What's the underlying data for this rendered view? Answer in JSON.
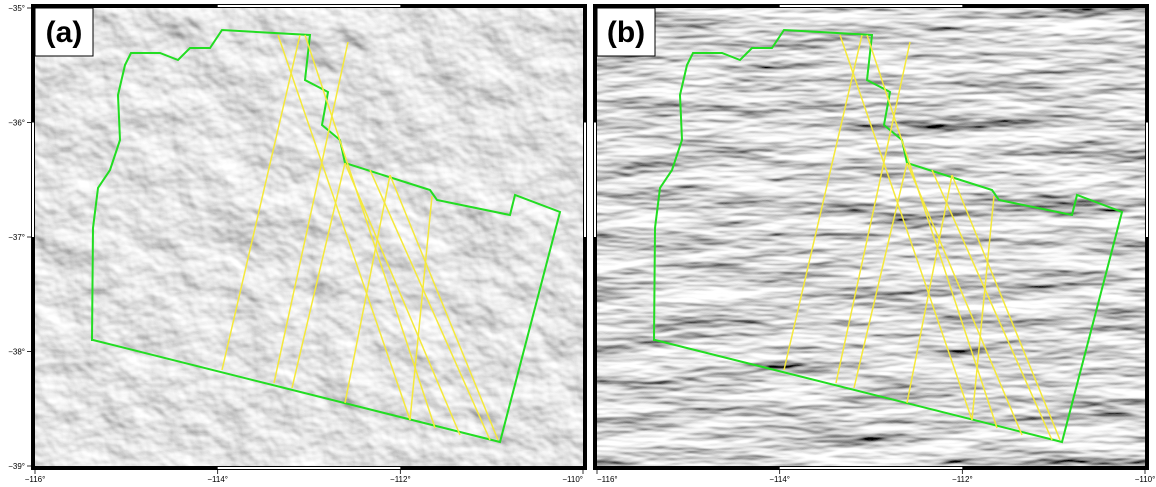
{
  "panels": [
    {
      "label": "(a)",
      "xticks": [
        {
          "value": -116,
          "label": "−116°"
        },
        {
          "value": -114,
          "label": "−114°"
        },
        {
          "value": -112,
          "label": "−112°"
        },
        {
          "value": -110,
          "label": "−110°"
        }
      ],
      "yticks": [
        {
          "value": -35,
          "label": "−35°"
        },
        {
          "value": -36,
          "label": "−36°"
        },
        {
          "value": -37,
          "label": "−37°"
        },
        {
          "value": -38,
          "label": "−38°"
        },
        {
          "value": -39,
          "label": "−39°"
        }
      ]
    },
    {
      "label": "(b)",
      "xticks": [
        {
          "value": -116,
          "label": "−116°"
        },
        {
          "value": -114,
          "label": "−114°"
        },
        {
          "value": -112,
          "label": "−112°"
        },
        {
          "value": -110,
          "label": "−110°"
        }
      ]
    }
  ]
}
